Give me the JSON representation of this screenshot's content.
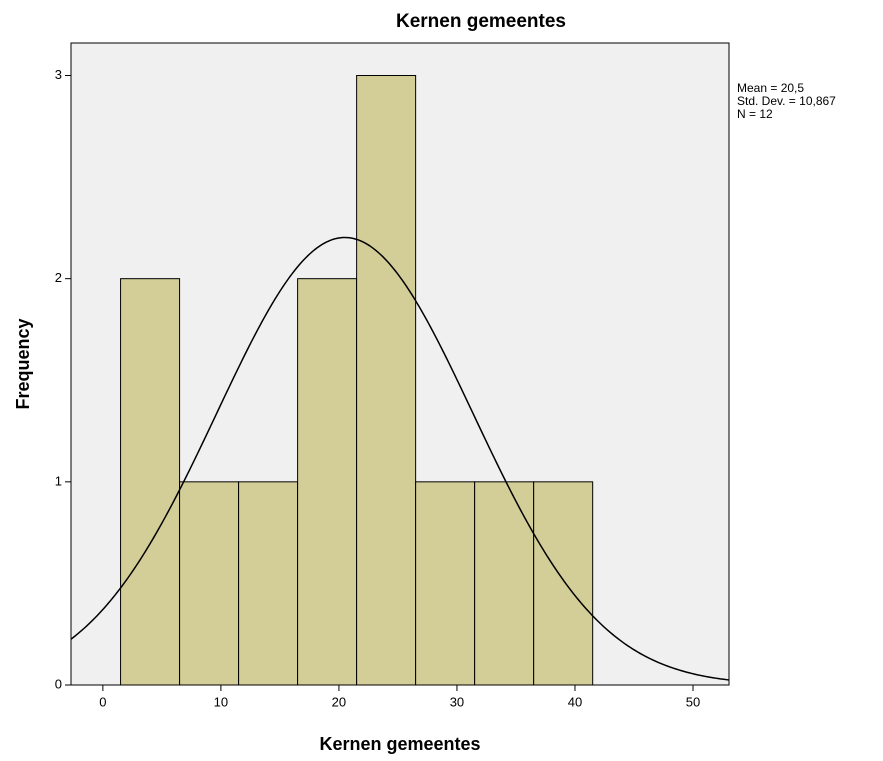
{
  "chart_data": {
    "type": "histogram",
    "title": "Kernen gemeentes",
    "x_label": "Kernen gemeentes",
    "y_label": "Frequency",
    "bins": [
      1.5,
      6.5,
      11.5,
      16.5,
      21.5,
      26.5,
      31.5,
      36.5,
      41.5
    ],
    "values": [
      2,
      1,
      1,
      2,
      3,
      1,
      1,
      1
    ],
    "color": "#d3ce97",
    "background": "#f0f0f0",
    "xlim": [
      -2.7,
      53.05
    ],
    "xticks": [
      0,
      10,
      20,
      30,
      40,
      50
    ],
    "ylim": [
      0,
      3.16
    ],
    "yticks": [
      0,
      1,
      2,
      3
    ],
    "stats": [
      {
        "value": 20.5,
        "label": "Mean = 20,5"
      },
      {
        "value": 10.867,
        "label": "Std. Dev. = 10,867"
      },
      {
        "value": 12,
        "label": "N = 12"
      }
    ]
  }
}
